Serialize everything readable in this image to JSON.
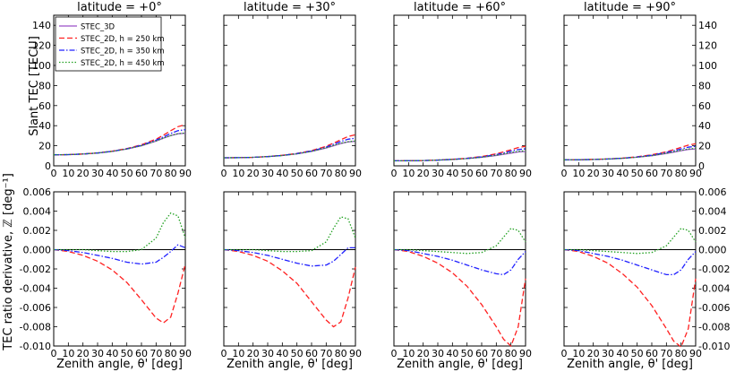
{
  "chart_data": {
    "type": "line",
    "layout": "2 rows x 4 columns of line plots sharing the zenith-angle axis",
    "panel_titles": [
      "latitude = +0°",
      "latitude = +30°",
      "latitude = +60°",
      "latitude = +90°"
    ],
    "top_ylabel": "Slant TEC [TECU]",
    "bottom_ylabel": "TEC ratio derivative, ℤ [deg⁻¹]",
    "xlabel": "Zenith angle, θ' [deg]",
    "xlim": [
      0,
      90
    ],
    "x_ticks": [
      "0",
      "10",
      "20",
      "30",
      "40",
      "50",
      "60",
      "70",
      "80",
      "90"
    ],
    "top_ylim": [
      0,
      150
    ],
    "top_y_ticks": [
      "0",
      "20",
      "40",
      "60",
      "80",
      "100",
      "120",
      "140"
    ],
    "bottom_ylim": [
      -0.01,
      0.006
    ],
    "bottom_y_ticks": [
      "-0.010",
      "-0.008",
      "-0.006",
      "-0.004",
      "-0.002",
      "0.000",
      "0.002",
      "0.004",
      "0.006"
    ],
    "grid": false,
    "legend_location": "top-left of first top panel",
    "legend": [
      {
        "label": "STEC_3D",
        "color": "#9b4fc8",
        "style": "solid"
      },
      {
        "label": "STEC_2D, h = 250 km",
        "color": "#ff2020",
        "style": "dashed"
      },
      {
        "label": "STEC_2D, h = 350 km",
        "color": "#2020ff",
        "style": "dashdot"
      },
      {
        "label": "STEC_2D, h = 450 km",
        "color": "#20a020",
        "style": "dotted"
      }
    ],
    "x": [
      0,
      10,
      20,
      30,
      40,
      50,
      60,
      70,
      75,
      80,
      85,
      90
    ],
    "top_panels": [
      {
        "series": [
          {
            "name": "STEC_3D",
            "values": [
              11.0,
              11.2,
              11.8,
              12.8,
              14.4,
              16.8,
              20.0,
              24.6,
              27.6,
              30.2,
              32.0,
              32.5
            ]
          },
          {
            "name": "STEC_2D, h = 250 km",
            "values": [
              11.0,
              11.2,
              11.8,
              12.9,
              14.6,
              17.2,
              21.0,
              26.5,
              30.5,
              35.0,
              39.0,
              41.0
            ]
          },
          {
            "name": "STEC_2D, h = 350 km",
            "values": [
              11.0,
              11.2,
              11.8,
              12.8,
              14.5,
              17.0,
              20.5,
              25.5,
              28.8,
              32.2,
              35.0,
              36.0
            ]
          },
          {
            "name": "STEC_2D, h = 450 km",
            "values": [
              11.0,
              11.2,
              11.8,
              12.8,
              14.4,
              16.8,
              20.1,
              24.8,
              27.6,
              30.2,
              32.0,
              32.8
            ]
          }
        ]
      },
      {
        "series": [
          {
            "name": "STEC_3D",
            "values": [
              8.0,
              8.1,
              8.5,
              9.2,
              10.3,
              12.0,
              14.4,
              17.8,
              20.0,
              22.2,
              23.8,
              24.5
            ]
          },
          {
            "name": "STEC_2D, h = 250 km",
            "values": [
              8.0,
              8.1,
              8.5,
              9.3,
              10.5,
              12.4,
              15.2,
              19.5,
              22.6,
              26.0,
              29.2,
              31.0
            ]
          },
          {
            "name": "STEC_2D, h = 350 km",
            "values": [
              8.0,
              8.1,
              8.5,
              9.2,
              10.4,
              12.2,
              14.8,
              18.7,
              21.4,
              24.2,
              26.5,
              27.5
            ]
          },
          {
            "name": "STEC_2D, h = 450 km",
            "values": [
              8.0,
              8.1,
              8.5,
              9.2,
              10.3,
              12.0,
              14.5,
              18.0,
              20.3,
              22.5,
              24.0,
              24.7
            ]
          }
        ]
      },
      {
        "series": [
          {
            "name": "STEC_3D",
            "values": [
              5.0,
              5.1,
              5.3,
              5.7,
              6.3,
              7.2,
              8.5,
              10.3,
              11.5,
              12.7,
              13.8,
              14.3
            ]
          },
          {
            "name": "STEC_2D, h = 250 km",
            "values": [
              5.0,
              5.1,
              5.3,
              5.8,
              6.5,
              7.6,
              9.3,
              12.0,
              13.9,
              16.0,
              18.2,
              19.5
            ]
          },
          {
            "name": "STEC_2D, h = 350 km",
            "values": [
              5.0,
              5.1,
              5.3,
              5.7,
              6.4,
              7.4,
              8.9,
              11.2,
              12.8,
              14.6,
              16.2,
              17.0
            ]
          },
          {
            "name": "STEC_2D, h = 450 km",
            "values": [
              5.0,
              5.1,
              5.3,
              5.7,
              6.3,
              7.2,
              8.6,
              10.6,
              11.9,
              13.3,
              14.4,
              15.0
            ]
          }
        ]
      },
      {
        "series": [
          {
            "name": "STEC_3D",
            "values": [
              6.0,
              6.1,
              6.3,
              6.8,
              7.5,
              8.6,
              10.1,
              12.3,
              13.7,
              15.1,
              16.3,
              16.9
            ]
          },
          {
            "name": "STEC_2D, h = 250 km",
            "values": [
              6.0,
              6.1,
              6.4,
              6.9,
              7.7,
              9.0,
              11.0,
              14.0,
              16.1,
              18.4,
              20.6,
              22.0
            ]
          },
          {
            "name": "STEC_2D, h = 350 km",
            "values": [
              6.0,
              6.1,
              6.3,
              6.8,
              7.6,
              8.8,
              10.6,
              13.3,
              15.0,
              16.9,
              18.6,
              19.5
            ]
          },
          {
            "name": "STEC_2D, h = 450 km",
            "values": [
              6.0,
              6.1,
              6.3,
              6.8,
              7.5,
              8.6,
              10.2,
              12.6,
              14.0,
              15.5,
              16.8,
              17.4
            ]
          }
        ]
      }
    ],
    "bottom_panels": [
      {
        "series": [
          {
            "name": "h = 250 km",
            "values": [
              0.0,
              -0.0002,
              -0.0006,
              -0.0012,
              -0.0021,
              -0.0034,
              -0.0052,
              -0.0071,
              -0.0076,
              -0.007,
              -0.0045,
              -0.0015
            ]
          },
          {
            "name": "h = 350 km",
            "values": [
              0.0,
              -0.0001,
              -0.0003,
              -0.0006,
              -0.0009,
              -0.0013,
              -0.0015,
              -0.0013,
              -0.0008,
              -0.0002,
              0.0005,
              0.0002
            ]
          },
          {
            "name": "h = 450 km",
            "values": [
              0.0,
              0.0,
              0.0,
              -0.0001,
              -0.0002,
              -0.0002,
              0.0,
              0.0012,
              0.0028,
              0.0038,
              0.0035,
              0.0012
            ]
          }
        ]
      },
      {
        "series": [
          {
            "name": "h = 250 km",
            "values": [
              0.0,
              -0.0002,
              -0.0006,
              -0.0012,
              -0.0022,
              -0.0035,
              -0.0054,
              -0.0073,
              -0.008,
              -0.0075,
              -0.005,
              -0.0018
            ]
          },
          {
            "name": "h = 350 km",
            "values": [
              0.0,
              -0.0001,
              -0.0003,
              -0.0006,
              -0.001,
              -0.0014,
              -0.0017,
              -0.0016,
              -0.0012,
              -0.0005,
              0.0002,
              0.0002
            ]
          },
          {
            "name": "h = 450 km",
            "values": [
              0.0,
              0.0,
              0.0,
              -0.0001,
              -0.0002,
              -0.0002,
              -0.0001,
              0.0008,
              0.0022,
              0.0034,
              0.0032,
              0.0012
            ]
          }
        ]
      },
      {
        "series": [
          {
            "name": "h = 250 km",
            "values": [
              0.0,
              -0.0002,
              -0.0007,
              -0.0014,
              -0.0024,
              -0.0038,
              -0.0057,
              -0.008,
              -0.0093,
              -0.01,
              -0.008,
              -0.003
            ]
          },
          {
            "name": "h = 350 km",
            "values": [
              0.0,
              -0.0001,
              -0.0004,
              -0.0007,
              -0.0011,
              -0.0016,
              -0.0021,
              -0.0025,
              -0.0026,
              -0.0021,
              -0.001,
              -0.0002
            ]
          },
          {
            "name": "h = 450 km",
            "values": [
              0.0,
              0.0,
              -0.0001,
              -0.0002,
              -0.0003,
              -0.0004,
              -0.0003,
              0.0004,
              0.0013,
              0.0022,
              0.002,
              0.0008
            ]
          }
        ]
      },
      {
        "series": [
          {
            "name": "h = 250 km",
            "values": [
              0.0,
              -0.0002,
              -0.0007,
              -0.0014,
              -0.0025,
              -0.0039,
              -0.0058,
              -0.0082,
              -0.0095,
              -0.0101,
              -0.0082,
              -0.003
            ]
          },
          {
            "name": "h = 350 km",
            "values": [
              0.0,
              -0.0001,
              -0.0004,
              -0.0007,
              -0.0011,
              -0.0016,
              -0.0021,
              -0.0026,
              -0.0026,
              -0.0021,
              -0.001,
              -0.0002
            ]
          },
          {
            "name": "h = 450 km",
            "values": [
              0.0,
              0.0,
              -0.0001,
              -0.0002,
              -0.0003,
              -0.0004,
              -0.0003,
              0.0004,
              0.0013,
              0.0022,
              0.002,
              0.0008
            ]
          }
        ]
      }
    ]
  }
}
